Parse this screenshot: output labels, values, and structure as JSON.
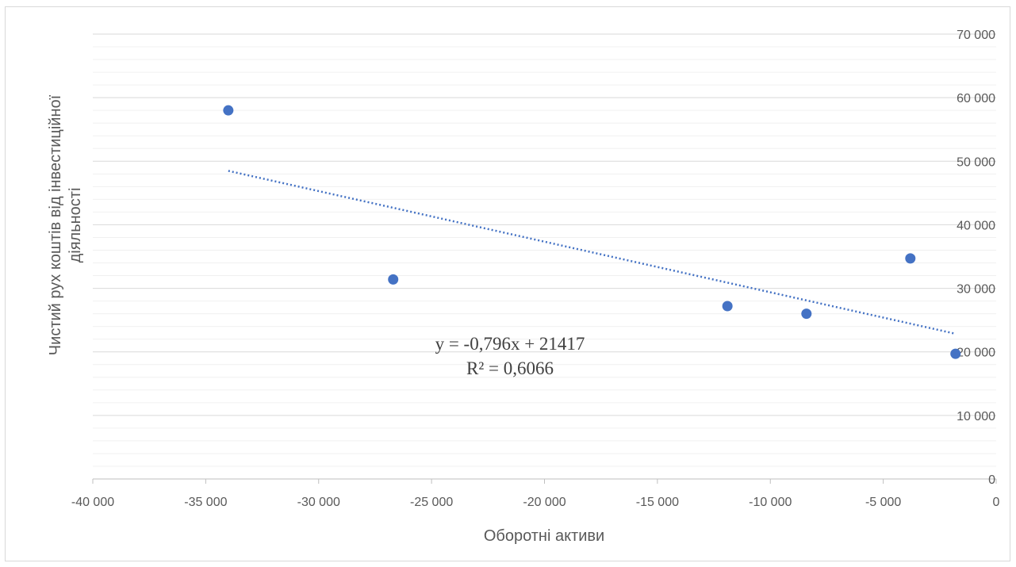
{
  "chart_data": {
    "type": "scatter",
    "xlabel": "Оборотні активи",
    "ylabel_lines": [
      "Чистий рух коштів від інвестиційної",
      "діяльності"
    ],
    "xlim": [
      -40000,
      0
    ],
    "ylim": [
      0,
      70000
    ],
    "x_ticks": [
      -40000,
      -35000,
      -30000,
      -25000,
      -20000,
      -15000,
      -10000,
      -5000,
      0
    ],
    "x_tick_labels": [
      "-40 000",
      "-35 000",
      "-30 000",
      "-25 000",
      "-20 000",
      "-15 000",
      "-10 000",
      "-5 000",
      "0"
    ],
    "y_ticks": [
      0,
      10000,
      20000,
      30000,
      40000,
      50000,
      60000,
      70000
    ],
    "y_tick_labels": [
      "0",
      "10 000",
      "20 000",
      "30 000",
      "40 000",
      "50 000",
      "60 000",
      "70 000"
    ],
    "y_minor_step": 2000,
    "y_axis_position": "right",
    "grid": true,
    "points": [
      {
        "x": -34000,
        "y": 58000
      },
      {
        "x": -26700,
        "y": 31400
      },
      {
        "x": -11900,
        "y": 27200
      },
      {
        "x": -8400,
        "y": 26000
      },
      {
        "x": -3800,
        "y": 34700
      },
      {
        "x": -1800,
        "y": 19700
      }
    ],
    "trendline": {
      "slope": -0.796,
      "intercept": 21417,
      "x_range": [
        -34000,
        -1800
      ],
      "style": "dotted"
    },
    "equation_lines": [
      "y = -0,796x + 21417",
      "R² = 0,6066"
    ],
    "colors": {
      "points": "#4472c4",
      "trendline": "#4472c4",
      "major_grid": "#d9d9d9",
      "minor_grid": "#f0f0f0",
      "axis": "#bfbfbf"
    }
  }
}
